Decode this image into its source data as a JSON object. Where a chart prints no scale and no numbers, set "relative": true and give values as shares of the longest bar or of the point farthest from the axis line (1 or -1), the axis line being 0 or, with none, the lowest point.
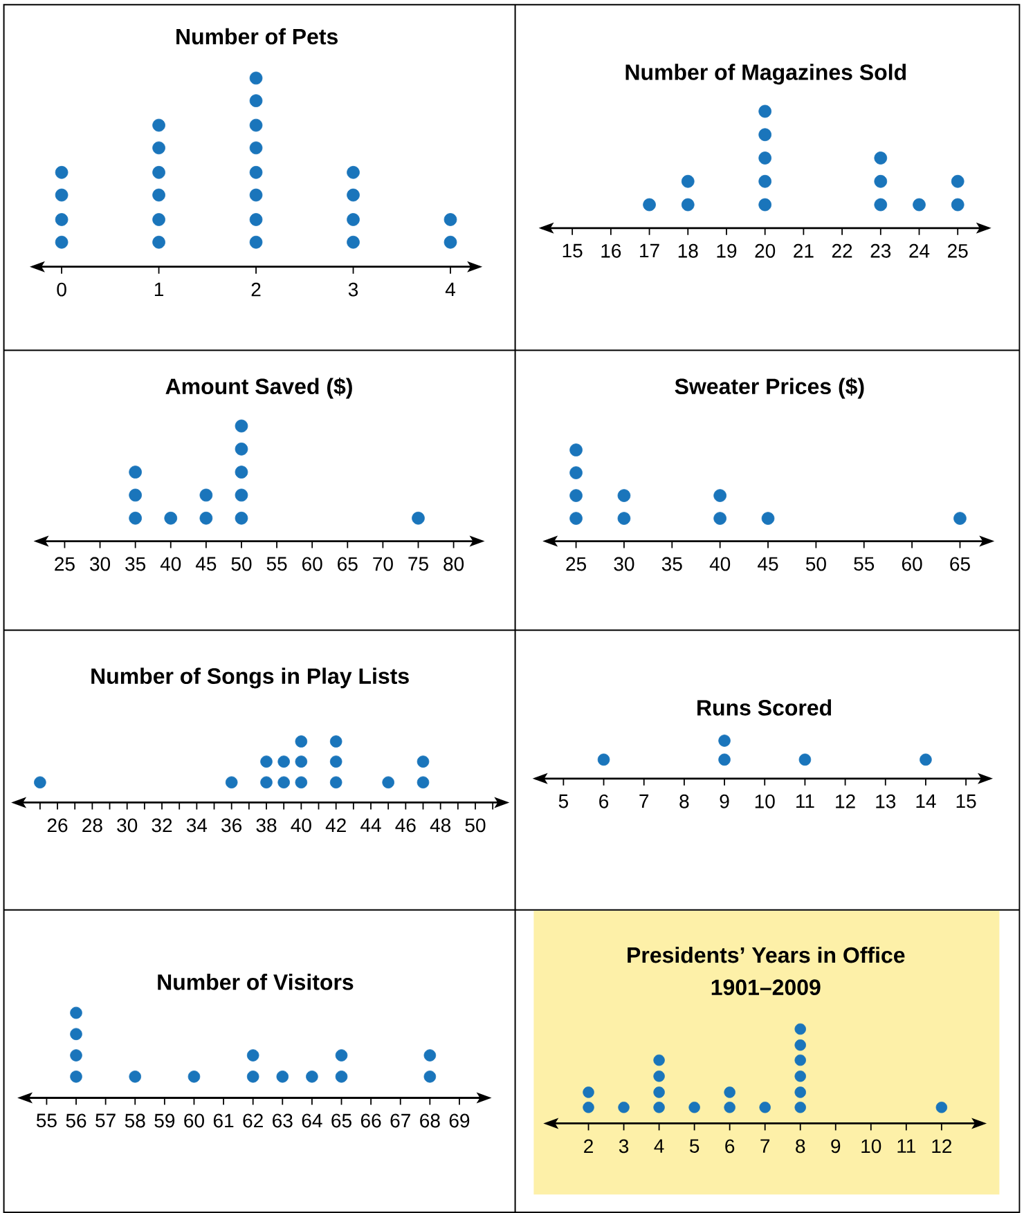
{
  "chart_data": [
    {
      "type": "scatter",
      "title": "Number of Pets",
      "relative": true,
      "x": [
        0,
        0,
        0,
        0,
        1,
        1,
        1,
        1,
        1,
        1,
        2,
        2,
        2,
        2,
        2,
        2,
        2,
        2,
        3,
        3,
        3,
        3,
        4,
        4
      ],
      "values": [
        0.13,
        0.25,
        0.38,
        0.5,
        0.13,
        0.25,
        0.38,
        0.5,
        0.63,
        0.75,
        0.13,
        0.25,
        0.38,
        0.5,
        0.63,
        0.75,
        0.88,
        1,
        0.13,
        0.25,
        0.38,
        0.5,
        0.13,
        0.25
      ],
      "color": "#1a75bb",
      "marker": "circle",
      "xlim": [
        -0.3,
        4.3
      ],
      "xticks": [
        0,
        1,
        2,
        3,
        4
      ],
      "tick_labels": "x"
    },
    {
      "type": "scatter",
      "title": "Number of Magazines Sold",
      "relative": true,
      "x": [
        17,
        18,
        18,
        20,
        20,
        20,
        20,
        20,
        23,
        23,
        23,
        24,
        25,
        25
      ],
      "values": [
        0.2,
        0.2,
        0.4,
        0.2,
        0.4,
        0.6,
        0.8,
        1,
        0.2,
        0.4,
        0.6,
        0.2,
        0.2,
        0.4
      ],
      "color": "#1a75bb",
      "marker": "circle",
      "xlim": [
        14.2,
        25.8
      ],
      "xticks": [
        15,
        16,
        17,
        18,
        19,
        20,
        21,
        22,
        23,
        24,
        25
      ],
      "tick_labels": "x"
    },
    {
      "type": "scatter",
      "title": "Amount Saved ($)",
      "relative": true,
      "x": [
        35,
        35,
        35,
        40,
        45,
        45,
        50,
        50,
        50,
        50,
        50,
        75
      ],
      "values": [
        0.2,
        0.4,
        0.6,
        0.2,
        0.2,
        0.4,
        0.2,
        0.4,
        0.6,
        0.8,
        1,
        0.2
      ],
      "color": "#1a75bb",
      "marker": "circle",
      "xlim": [
        21,
        84
      ],
      "xticks": [
        25,
        30,
        35,
        40,
        45,
        50,
        55,
        60,
        65,
        70,
        75,
        80
      ],
      "tick_labels": "x"
    },
    {
      "type": "scatter",
      "title": "Sweater Prices ($)",
      "relative": true,
      "x": [
        25,
        25,
        25,
        25,
        30,
        30,
        40,
        40,
        45,
        65
      ],
      "values": [
        0.25,
        0.5,
        0.75,
        1,
        0.25,
        0.5,
        0.25,
        0.5,
        0.25,
        0.25
      ],
      "color": "#1a75bb",
      "marker": "circle",
      "xlim": [
        21.8,
        68.3
      ],
      "xticks": [
        25,
        30,
        35,
        40,
        45,
        50,
        55,
        60,
        65
      ],
      "tick_labels": "x"
    },
    {
      "type": "scatter",
      "title": "Number of Songs in Play Lists",
      "relative": true,
      "x": [
        25,
        36,
        38,
        38,
        39,
        39,
        40,
        40,
        40,
        42,
        42,
        42,
        45,
        47,
        47
      ],
      "values": [
        0.33,
        0.33,
        0.33,
        0.67,
        0.33,
        0.67,
        0.33,
        0.67,
        1,
        0.33,
        0.67,
        1,
        0.33,
        0.33,
        0.67
      ],
      "color": "#1a75bb",
      "marker": "circle",
      "xlim": [
        23.5,
        51.8
      ],
      "xticks": [
        {
          "value": 25,
          "label": null
        },
        26,
        {
          "value": 27,
          "label": null
        },
        28,
        {
          "value": 29,
          "label": null
        },
        30,
        {
          "value": 31,
          "label": null
        },
        32,
        {
          "value": 33,
          "label": null
        },
        34,
        {
          "value": 35,
          "label": null
        },
        36,
        {
          "value": 37,
          "label": null
        },
        38,
        {
          "value": 39,
          "label": null
        },
        40,
        {
          "value": 41,
          "label": null
        },
        42,
        {
          "value": 43,
          "label": null
        },
        44,
        {
          "value": 45,
          "label": null
        },
        46,
        {
          "value": 47,
          "label": null
        },
        48,
        {
          "value": 49,
          "label": null
        },
        50,
        {
          "value": 51,
          "label": null
        }
      ],
      "tick_labels": "x"
    },
    {
      "type": "scatter",
      "title": "Runs Scored",
      "relative": true,
      "x": [
        6,
        9,
        9,
        11,
        14
      ],
      "values": [
        0.5,
        0.5,
        1,
        0.5,
        0.5
      ],
      "color": "#1a75bb",
      "marker": "circle",
      "xlim": [
        4.3,
        15.6
      ],
      "xticks": [
        5,
        6,
        7,
        8,
        9,
        10,
        11,
        12,
        13,
        14,
        15
      ],
      "tick_labels": "x"
    },
    {
      "type": "scatter",
      "title": "Number of Visitors",
      "relative": true,
      "x": [
        56,
        56,
        56,
        56,
        58,
        60,
        62,
        62,
        63,
        64,
        65,
        65,
        68,
        68
      ],
      "values": [
        0.25,
        0.5,
        0.75,
        1,
        0.25,
        0.25,
        0.25,
        0.5,
        0.25,
        0.25,
        0.25,
        0.5,
        0.25,
        0.5
      ],
      "color": "#1a75bb",
      "marker": "circle",
      "xlim": [
        54.1,
        70
      ],
      "xticks": [
        55,
        56,
        57,
        58,
        59,
        60,
        61,
        62,
        63,
        64,
        65,
        66,
        67,
        68,
        69
      ],
      "tick_labels": "x"
    },
    {
      "type": "scatter",
      "title": "Presidents’ Years in Office",
      "subtitle": "1901–2009",
      "relative": true,
      "x": [
        2,
        2,
        3,
        4,
        4,
        4,
        4,
        5,
        6,
        6,
        7,
        8,
        8,
        8,
        8,
        8,
        8,
        12
      ],
      "values": [
        0.17,
        0.33,
        0.17,
        0.17,
        0.33,
        0.5,
        0.67,
        0.17,
        0.17,
        0.33,
        0.17,
        0.17,
        0.33,
        0.5,
        0.67,
        0.83,
        1,
        0.17
      ],
      "color": "#1a75bb",
      "marker": "circle",
      "xlim": [
        0.8,
        13.2
      ],
      "xticks": [
        2,
        3,
        4,
        5,
        6,
        7,
        8,
        9,
        10,
        11,
        12
      ],
      "tick_labels": "x"
    }
  ]
}
